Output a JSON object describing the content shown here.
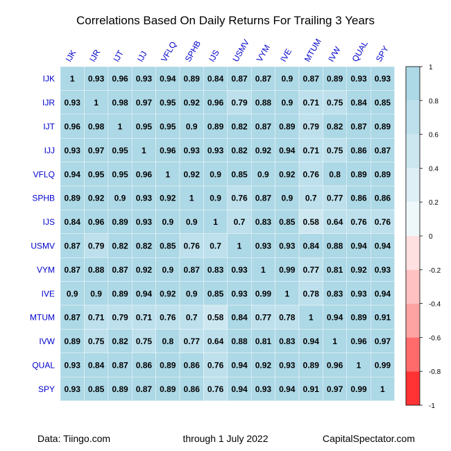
{
  "chart_data": {
    "type": "heatmap",
    "title": "Correlations Based On Daily Returns For Trailing 3 Years",
    "row_labels": [
      "IJK",
      "IJR",
      "IJT",
      "IJJ",
      "VFLQ",
      "SPHB",
      "IJS",
      "USMV",
      "VYM",
      "IVE",
      "MTUM",
      "IVW",
      "QUAL",
      "SPY"
    ],
    "col_labels": [
      "IJK",
      "IJR",
      "IJT",
      "IJJ",
      "VFLQ",
      "SPHB",
      "IJS",
      "USMV",
      "VYM",
      "IVE",
      "MTUM",
      "IVW",
      "QUAL",
      "SPY"
    ],
    "values": [
      [
        1,
        0.93,
        0.96,
        0.93,
        0.94,
        0.89,
        0.84,
        0.87,
        0.87,
        0.9,
        0.87,
        0.89,
        0.93,
        0.93
      ],
      [
        0.93,
        1,
        0.98,
        0.97,
        0.95,
        0.92,
        0.96,
        0.79,
        0.88,
        0.9,
        0.71,
        0.75,
        0.84,
        0.85
      ],
      [
        0.96,
        0.98,
        1,
        0.95,
        0.95,
        0.9,
        0.89,
        0.82,
        0.87,
        0.89,
        0.79,
        0.82,
        0.87,
        0.89
      ],
      [
        0.93,
        0.97,
        0.95,
        1,
        0.96,
        0.93,
        0.93,
        0.82,
        0.92,
        0.94,
        0.71,
        0.75,
        0.86,
        0.87
      ],
      [
        0.94,
        0.95,
        0.95,
        0.96,
        1,
        0.92,
        0.9,
        0.85,
        0.9,
        0.92,
        0.76,
        0.8,
        0.89,
        0.89
      ],
      [
        0.89,
        0.92,
        0.9,
        0.93,
        0.92,
        1,
        0.9,
        0.76,
        0.87,
        0.9,
        0.7,
        0.77,
        0.86,
        0.86
      ],
      [
        0.84,
        0.96,
        0.89,
        0.93,
        0.9,
        0.9,
        1,
        0.7,
        0.83,
        0.85,
        0.58,
        0.64,
        0.76,
        0.76
      ],
      [
        0.87,
        0.79,
        0.82,
        0.82,
        0.85,
        0.76,
        0.7,
        1,
        0.93,
        0.93,
        0.84,
        0.88,
        0.94,
        0.94
      ],
      [
        0.87,
        0.88,
        0.87,
        0.92,
        0.9,
        0.87,
        0.83,
        0.93,
        1,
        0.99,
        0.77,
        0.81,
        0.92,
        0.93
      ],
      [
        0.9,
        0.9,
        0.89,
        0.94,
        0.92,
        0.9,
        0.85,
        0.93,
        0.99,
        1,
        0.78,
        0.83,
        0.93,
        0.94
      ],
      [
        0.87,
        0.71,
        0.79,
        0.71,
        0.76,
        0.7,
        0.58,
        0.84,
        0.77,
        0.78,
        1,
        0.94,
        0.89,
        0.91
      ],
      [
        0.89,
        0.75,
        0.82,
        0.75,
        0.8,
        0.77,
        0.64,
        0.88,
        0.81,
        0.83,
        0.94,
        1,
        0.96,
        0.97
      ],
      [
        0.93,
        0.84,
        0.87,
        0.86,
        0.89,
        0.86,
        0.76,
        0.94,
        0.92,
        0.93,
        0.89,
        0.96,
        1,
        0.99
      ],
      [
        0.93,
        0.85,
        0.89,
        0.87,
        0.89,
        0.86,
        0.76,
        0.94,
        0.93,
        0.94,
        0.91,
        0.97,
        0.99,
        1
      ]
    ],
    "value_labels": [
      [
        "1",
        "0.93",
        "0.96",
        "0.93",
        "0.94",
        "0.89",
        "0.84",
        "0.87",
        "0.87",
        "0.9",
        "0.87",
        "0.89",
        "0.93",
        "0.93"
      ],
      [
        "0.93",
        "1",
        "0.98",
        "0.97",
        "0.95",
        "0.92",
        "0.96",
        "0.79",
        "0.88",
        "0.9",
        "0.71",
        "0.75",
        "0.84",
        "0.85"
      ],
      [
        "0.96",
        "0.98",
        "1",
        "0.95",
        "0.95",
        "0.9",
        "0.89",
        "0.82",
        "0.87",
        "0.89",
        "0.79",
        "0.82",
        "0.87",
        "0.89"
      ],
      [
        "0.93",
        "0.97",
        "0.95",
        "1",
        "0.96",
        "0.93",
        "0.93",
        "0.82",
        "0.92",
        "0.94",
        "0.71",
        "0.75",
        "0.86",
        "0.87"
      ],
      [
        "0.94",
        "0.95",
        "0.95",
        "0.96",
        "1",
        "0.92",
        "0.9",
        "0.85",
        "0.9",
        "0.92",
        "0.76",
        "0.8",
        "0.89",
        "0.89"
      ],
      [
        "0.89",
        "0.92",
        "0.9",
        "0.93",
        "0.92",
        "1",
        "0.9",
        "0.76",
        "0.87",
        "0.9",
        "0.7",
        "0.77",
        "0.86",
        "0.86"
      ],
      [
        "0.84",
        "0.96",
        "0.89",
        "0.93",
        "0.9",
        "0.9",
        "1",
        "0.7",
        "0.83",
        "0.85",
        "0.58",
        "0.64",
        "0.76",
        "0.76"
      ],
      [
        "0.87",
        "0.79",
        "0.82",
        "0.82",
        "0.85",
        "0.76",
        "0.7",
        "1",
        "0.93",
        "0.93",
        "0.84",
        "0.88",
        "0.94",
        "0.94"
      ],
      [
        "0.87",
        "0.88",
        "0.87",
        "0.92",
        "0.9",
        "0.87",
        "0.83",
        "0.93",
        "1",
        "0.99",
        "0.77",
        "0.81",
        "0.92",
        "0.93"
      ],
      [
        "0.9",
        "0.9",
        "0.89",
        "0.94",
        "0.92",
        "0.9",
        "0.85",
        "0.93",
        "0.99",
        "1",
        "0.78",
        "0.83",
        "0.93",
        "0.94"
      ],
      [
        "0.87",
        "0.71",
        "0.79",
        "0.71",
        "0.76",
        "0.7",
        "0.58",
        "0.84",
        "0.77",
        "0.78",
        "1",
        "0.94",
        "0.89",
        "0.91"
      ],
      [
        "0.89",
        "0.75",
        "0.82",
        "0.75",
        "0.8",
        "0.77",
        "0.64",
        "0.88",
        "0.81",
        "0.83",
        "0.94",
        "1",
        "0.96",
        "0.97"
      ],
      [
        "0.93",
        "0.84",
        "0.87",
        "0.86",
        "0.89",
        "0.86",
        "0.76",
        "0.94",
        "0.92",
        "0.93",
        "0.89",
        "0.96",
        "1",
        "0.99"
      ],
      [
        "0.93",
        "0.85",
        "0.89",
        "0.87",
        "0.89",
        "0.86",
        "0.76",
        "0.94",
        "0.93",
        "0.94",
        "0.91",
        "0.97",
        "0.99",
        "1"
      ]
    ],
    "colorbar": {
      "range": [
        -1,
        1
      ],
      "ticks": [
        1,
        0.8,
        0.6,
        0.4,
        0.2,
        0,
        -0.2,
        -0.4,
        -0.6,
        -0.8,
        -1
      ],
      "tick_labels": [
        "1",
        "0.8",
        "0.6",
        "0.4",
        "0.2",
        "0",
        "-0.2",
        "-0.4",
        "-0.6",
        "-0.8",
        "-1"
      ],
      "bins": [
        {
          "from": 0.8,
          "to": 1.0,
          "color": "#add8e6"
        },
        {
          "from": 0.6,
          "to": 0.8,
          "color": "#bde0ec"
        },
        {
          "from": 0.4,
          "to": 0.6,
          "color": "#cde7f0"
        },
        {
          "from": 0.2,
          "to": 0.4,
          "color": "#deeff5"
        },
        {
          "from": 0.0,
          "to": 0.2,
          "color": "#eef7fa"
        },
        {
          "from": -0.2,
          "to": 0.0,
          "color": "#ffe0e0"
        },
        {
          "from": -0.4,
          "to": -0.2,
          "color": "#ffc1c1"
        },
        {
          "from": -0.6,
          "to": -0.4,
          "color": "#ffa2a2"
        },
        {
          "from": -0.8,
          "to": -0.6,
          "color": "#ff6b6b"
        },
        {
          "from": -1.0,
          "to": -0.8,
          "color": "#ff3333"
        }
      ],
      "bottom_color": "#ff0000"
    },
    "colors": {
      "label_text": "#0000cc",
      "cell_text": "#000000",
      "cell_border": "#ffffff"
    }
  },
  "footer": {
    "left": "Data: Tiingo.com",
    "center": "through 1 July 2022",
    "right": "CapitalSpectator.com"
  }
}
